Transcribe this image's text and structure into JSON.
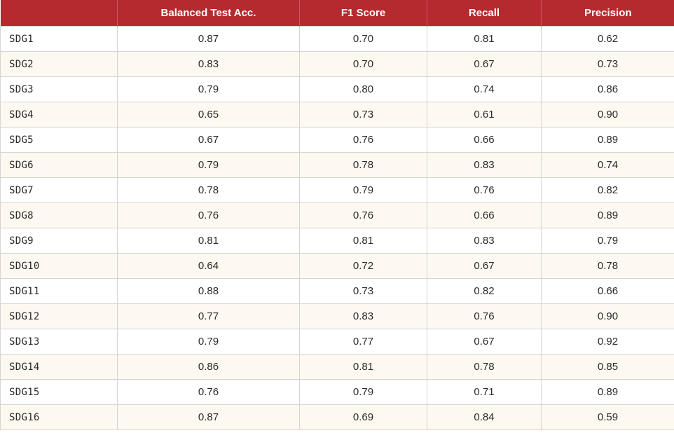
{
  "table": {
    "columns": [
      "",
      "Balanced Test Acc.",
      "F1 Score",
      "Recall",
      "Precision"
    ],
    "rows": [
      [
        "SDG1",
        "0.87",
        "0.70",
        "0.81",
        "0.62"
      ],
      [
        "SDG2",
        "0.83",
        "0.70",
        "0.67",
        "0.73"
      ],
      [
        "SDG3",
        "0.79",
        "0.80",
        "0.74",
        "0.86"
      ],
      [
        "SDG4",
        "0.65",
        "0.73",
        "0.61",
        "0.90"
      ],
      [
        "SDG5",
        "0.67",
        "0.76",
        "0.66",
        "0.89"
      ],
      [
        "SDG6",
        "0.79",
        "0.78",
        "0.83",
        "0.74"
      ],
      [
        "SDG7",
        "0.78",
        "0.79",
        "0.76",
        "0.82"
      ],
      [
        "SDG8",
        "0.76",
        "0.76",
        "0.66",
        "0.89"
      ],
      [
        "SDG9",
        "0.81",
        "0.81",
        "0.83",
        "0.79"
      ],
      [
        "SDG10",
        "0.64",
        "0.72",
        "0.67",
        "0.78"
      ],
      [
        "SDG11",
        "0.88",
        "0.73",
        "0.82",
        "0.66"
      ],
      [
        "SDG12",
        "0.77",
        "0.83",
        "0.76",
        "0.90"
      ],
      [
        "SDG13",
        "0.79",
        "0.77",
        "0.67",
        "0.92"
      ],
      [
        "SDG14",
        "0.86",
        "0.81",
        "0.78",
        "0.85"
      ],
      [
        "SDG15",
        "0.76",
        "0.79",
        "0.71",
        "0.89"
      ],
      [
        "SDG16",
        "0.87",
        "0.69",
        "0.84",
        "0.59"
      ]
    ]
  },
  "colors": {
    "header_bg": "#b52a2f",
    "header_text": "#ffffff",
    "stripe_bg": "#fdf8f0",
    "border": "#d5d5d5"
  }
}
